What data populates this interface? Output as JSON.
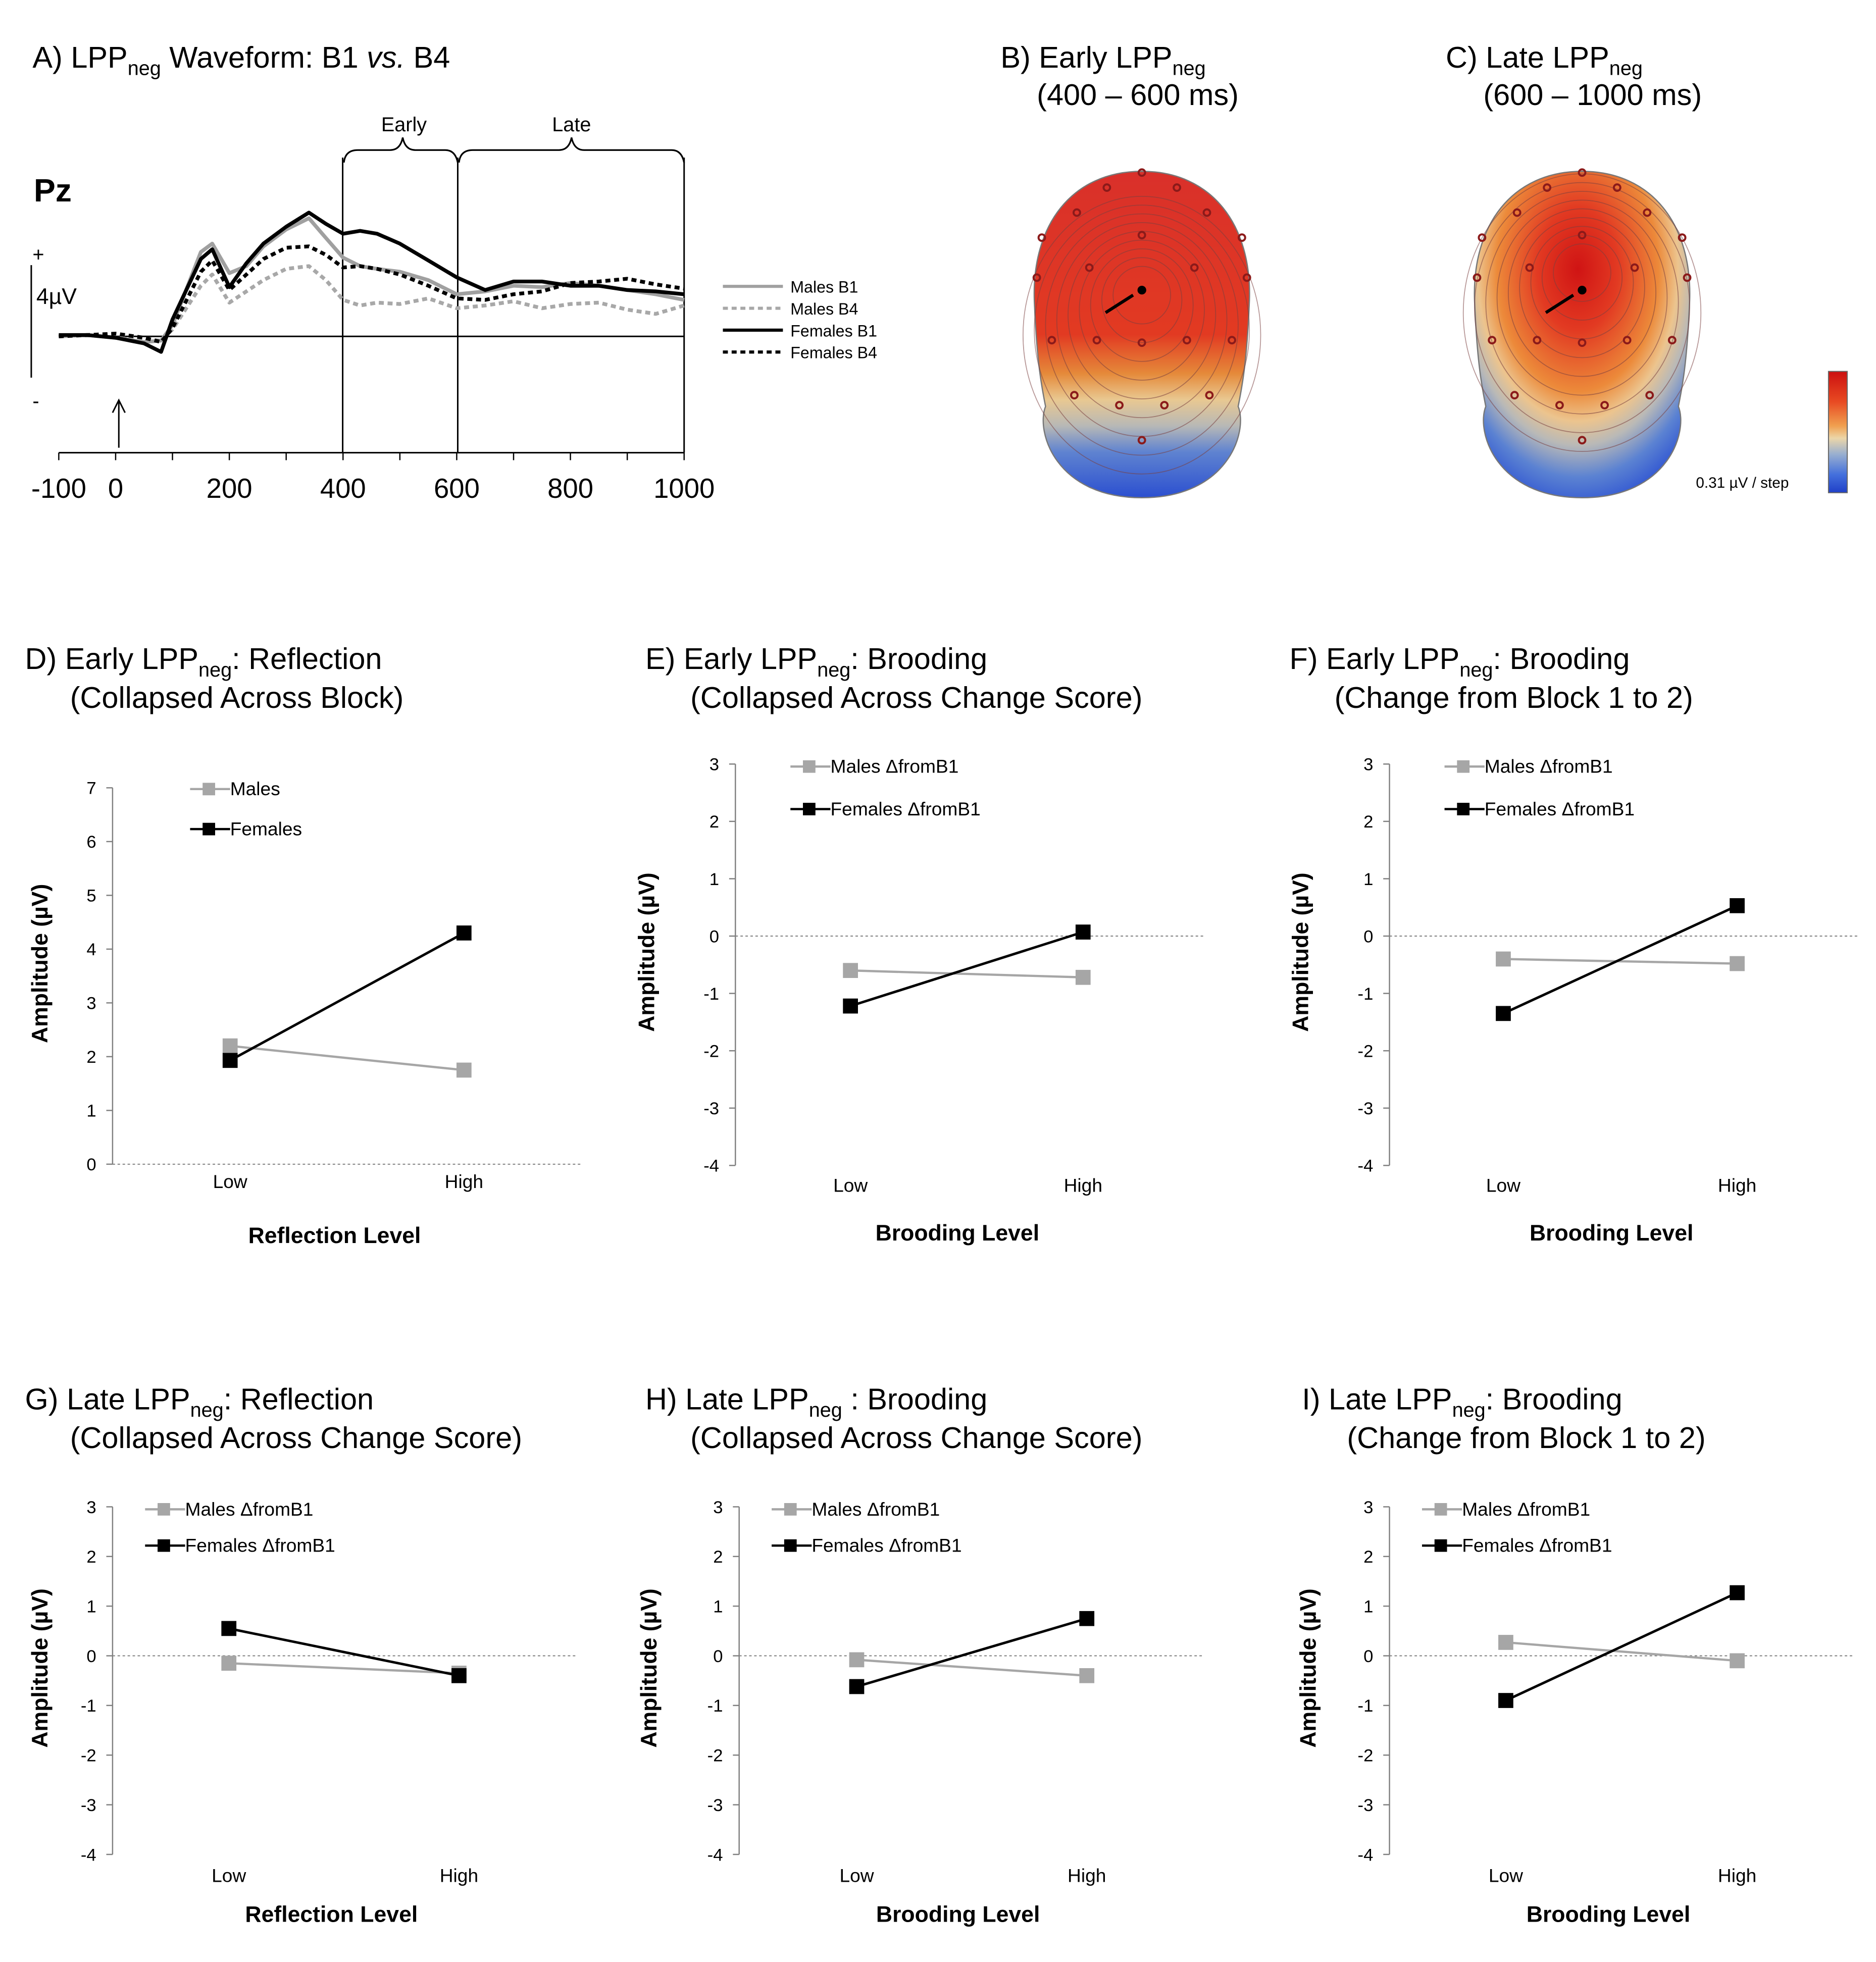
{
  "panel_a": {
    "title": "A) LPP",
    "title_sub": "neg",
    "title_rest": " Waveform: B1 ",
    "title_vs": "vs.",
    "title_end": " B4",
    "electrode": "Pz",
    "scale_plus": "+",
    "scale_minus": "-",
    "scale_label": "4µV",
    "window_early": "Early",
    "window_late": "Late",
    "x_ticks": [
      "-100",
      "0",
      "200",
      "400",
      "600",
      "800",
      "1000"
    ],
    "legend": [
      "Males B1",
      "Males B4",
      "Females B1",
      "Females B4"
    ]
  },
  "panel_b": {
    "title_1": "B) Early LPP",
    "title_sub": "neg",
    "title_2": "(400 – 600 ms)"
  },
  "panel_c": {
    "title_1": "C) Late LPP",
    "title_sub": "neg",
    "title_2": "(600 – 1000 ms)"
  },
  "colorbar_label": "0.31 µV / step",
  "line_panels": [
    {
      "id": "D",
      "title_a": "D) Early LPP",
      "title_b": ": Reflection",
      "title_2": "(Collapsed Across Block)",
      "xlabel": "Reflection Level",
      "ylabel": "Amplitude (µV)",
      "legend": [
        "Males",
        "Females"
      ]
    },
    {
      "id": "E",
      "title_a": "E) Early LPP",
      "title_b": ": Brooding",
      "title_2": "(Collapsed Across Change Score)",
      "xlabel": "Brooding Level",
      "ylabel": "Amplitude (µV)",
      "legend": [
        "Males ΔfromB1",
        "Females ΔfromB1"
      ]
    },
    {
      "id": "F",
      "title_a": "F) Early LPP",
      "title_b": ": Brooding",
      "title_2": "(Change from Block 1 to 2)",
      "xlabel": "Brooding Level",
      "ylabel": "Amplitude (µV)",
      "legend": [
        "Males ΔfromB1",
        "Females ΔfromB1"
      ]
    },
    {
      "id": "G",
      "title_a": "G) Late LPP",
      "title_b": ": Reflection",
      "title_2": "(Collapsed Across Change Score)",
      "xlabel": "Reflection Level",
      "ylabel": "Amplitude (µV)",
      "legend": [
        "Males ΔfromB1",
        "Females ΔfromB1"
      ]
    },
    {
      "id": "H",
      "title_a": "H) Late LPP",
      "title_b": " : Brooding",
      "title_2": "(Collapsed Across Change Score)",
      "xlabel": "Brooding Level",
      "ylabel": "Amplitude (µV)",
      "legend": [
        "Males ΔfromB1",
        "Females ΔfromB1"
      ]
    },
    {
      "id": "I",
      "title_a": "I) Late LPP",
      "title_b": ": Brooding",
      "title_2": "(Change from Block 1 to 2)",
      "xlabel": "Brooding Level",
      "ylabel": "Amplitude (µV)",
      "legend": [
        "Males ΔfromB1",
        "Females ΔfromB1"
      ]
    }
  ],
  "colors": {
    "males": "#a6a6a6",
    "females": "#000000",
    "topo_high": "#d7191c",
    "topo_low": "#2c5fd6"
  },
  "chart_data": [
    {
      "panel": "A",
      "type": "line",
      "x_range": [
        -100,
        1000
      ],
      "x": [
        -100,
        -50,
        0,
        50,
        80,
        100,
        150,
        170,
        200,
        230,
        260,
        300,
        340,
        370,
        400,
        430,
        460,
        500,
        550,
        600,
        650,
        700,
        750,
        800,
        850,
        900,
        950,
        1000
      ],
      "series": [
        {
          "name": "Males B1",
          "values": [
            0,
            0.1,
            -0.1,
            -0.4,
            -0.3,
            0.8,
            6.0,
            6.6,
            4.5,
            5.0,
            6.4,
            7.6,
            8.4,
            7.0,
            5.6,
            5.0,
            4.8,
            4.6,
            4.0,
            3.0,
            3.2,
            3.6,
            3.5,
            3.8,
            3.6,
            3.3,
            3.0,
            2.6
          ]
        },
        {
          "name": "Males B4",
          "values": [
            0,
            0.1,
            0.1,
            -0.2,
            -0.3,
            0.5,
            3.6,
            4.4,
            2.4,
            3.2,
            4.0,
            4.8,
            5.0,
            4.0,
            2.6,
            2.2,
            2.4,
            2.3,
            2.7,
            2.0,
            2.2,
            2.5,
            2.0,
            2.3,
            2.4,
            1.9,
            1.6,
            2.2
          ]
        },
        {
          "name": "Females B1",
          "values": [
            0.1,
            0.1,
            -0.1,
            -0.5,
            -1.1,
            1.2,
            5.5,
            6.2,
            3.5,
            5.2,
            6.6,
            7.8,
            8.8,
            8.0,
            7.3,
            7.5,
            7.3,
            6.6,
            5.4,
            4.2,
            3.3,
            3.9,
            3.9,
            3.6,
            3.6,
            3.3,
            3.2,
            3.0
          ]
        },
        {
          "name": "Females B4",
          "values": [
            0,
            0.1,
            0.2,
            -0.1,
            -0.4,
            0.6,
            4.6,
            5.4,
            3.3,
            4.4,
            5.5,
            6.3,
            6.4,
            5.8,
            4.9,
            5.0,
            4.8,
            4.4,
            3.6,
            2.7,
            2.6,
            3.0,
            3.2,
            3.8,
            3.9,
            4.1,
            3.7,
            3.4
          ]
        }
      ],
      "xlabel": "",
      "ylabel": "4µV"
    },
    {
      "panel": "D",
      "type": "line",
      "categories": [
        "Low",
        "High"
      ],
      "ylim": [
        0,
        7
      ],
      "yticks": [
        0,
        1,
        2,
        3,
        4,
        5,
        6,
        7
      ],
      "series": [
        {
          "name": "Males",
          "values": [
            2.2,
            1.75
          ]
        },
        {
          "name": "Females",
          "values": [
            1.93,
            4.3
          ]
        }
      ]
    },
    {
      "panel": "E",
      "type": "line",
      "categories": [
        "Low",
        "High"
      ],
      "ylim": [
        -4,
        3
      ],
      "yticks": [
        -4,
        -3,
        -2,
        -1,
        0,
        1,
        2,
        3
      ],
      "series": [
        {
          "name": "Males ΔfromB1",
          "values": [
            -0.6,
            -0.72
          ]
        },
        {
          "name": "Females ΔfromB1",
          "values": [
            -1.22,
            0.07
          ]
        }
      ]
    },
    {
      "panel": "F",
      "type": "line",
      "categories": [
        "Low",
        "High"
      ],
      "ylim": [
        -4,
        3
      ],
      "yticks": [
        -4,
        -3,
        -2,
        -1,
        0,
        1,
        2,
        3
      ],
      "series": [
        {
          "name": "Males ΔfromB1",
          "values": [
            -0.4,
            -0.48
          ]
        },
        {
          "name": "Females ΔfromB1",
          "values": [
            -1.35,
            0.53
          ]
        }
      ]
    },
    {
      "panel": "G",
      "type": "line",
      "categories": [
        "Low",
        "High"
      ],
      "ylim": [
        -4,
        3
      ],
      "yticks": [
        -4,
        -3,
        -2,
        -1,
        0,
        1,
        2,
        3
      ],
      "series": [
        {
          "name": "Males ΔfromB1",
          "values": [
            -0.15,
            -0.35
          ]
        },
        {
          "name": "Females ΔfromB1",
          "values": [
            0.55,
            -0.4
          ]
        }
      ]
    },
    {
      "panel": "H",
      "type": "line",
      "categories": [
        "Low",
        "High"
      ],
      "ylim": [
        -4,
        3
      ],
      "yticks": [
        -4,
        -3,
        -2,
        -1,
        0,
        1,
        2,
        3
      ],
      "series": [
        {
          "name": "Males ΔfromB1",
          "values": [
            -0.08,
            -0.4
          ]
        },
        {
          "name": "Females ΔfromB1",
          "values": [
            -0.62,
            0.75
          ]
        }
      ]
    },
    {
      "panel": "I",
      "type": "line",
      "categories": [
        "Low",
        "High"
      ],
      "ylim": [
        -4,
        3
      ],
      "yticks": [
        -4,
        -3,
        -2,
        -1,
        0,
        1,
        2,
        3
      ],
      "series": [
        {
          "name": "Males ΔfromB1",
          "values": [
            0.27,
            -0.1
          ]
        },
        {
          "name": "Females ΔfromB1",
          "values": [
            -0.9,
            1.27
          ]
        }
      ]
    }
  ]
}
